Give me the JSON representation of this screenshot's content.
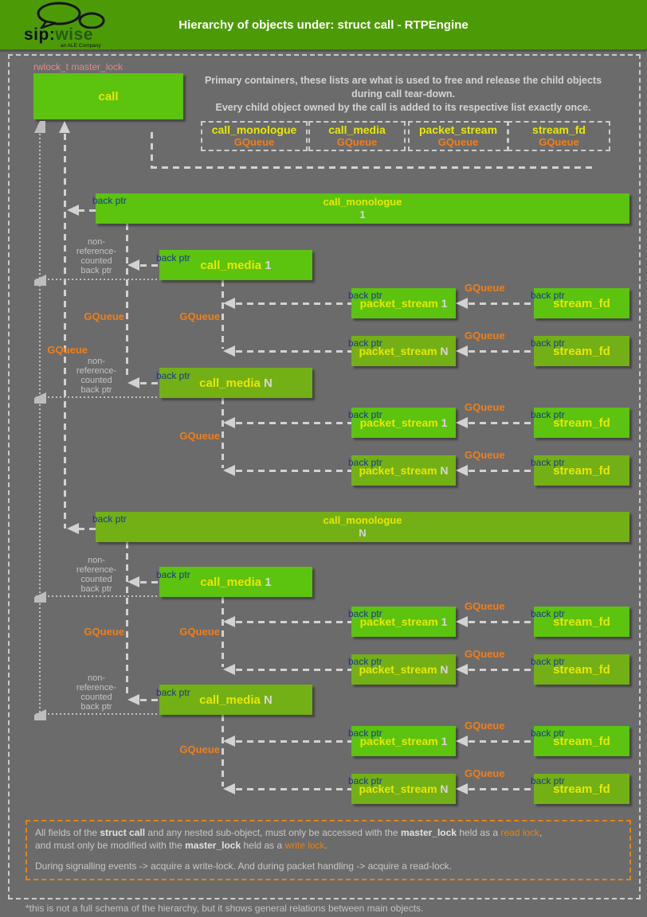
{
  "header": {
    "title": "Hierarchy of objects under: struct call - RTPEngine",
    "logo": {
      "sip": "sip:",
      "wise": "wise",
      "tagline": "an ALE Company"
    }
  },
  "diagram": {
    "lock_label": "rwlock_t master_lock",
    "call_label": "call",
    "description": "Primary containers, these lists are what is used to free and release the child objects\nduring call tear-down.\nEvery child object owned by the call is added to its respective list exactly once.",
    "legend": [
      {
        "name": "call_monologue",
        "container": "GQueue"
      },
      {
        "name": "call_media",
        "container": "GQueue"
      },
      {
        "name": "packet_stream",
        "container": "GQueue"
      },
      {
        "name": "stream_fd",
        "container": "GQueue"
      }
    ],
    "labels": {
      "back_ptr": "back ptr",
      "gqueue": "GQueue",
      "non_ref": "non-\nreference-\ncounted\nback ptr"
    },
    "monologues": [
      {
        "name": "call_monologue",
        "index": "1"
      },
      {
        "name": "call_monologue",
        "index": "N"
      }
    ],
    "medias": [
      {
        "name": "call_media",
        "index": "1"
      },
      {
        "name": "call_media",
        "index": "N"
      },
      {
        "name": "call_media",
        "index": "1"
      },
      {
        "name": "call_media",
        "index": "N"
      }
    ],
    "streams": [
      {
        "name": "packet_stream",
        "index": "1",
        "fd": "stream_fd"
      },
      {
        "name": "packet_stream",
        "index": "N",
        "fd": "stream_fd"
      },
      {
        "name": "packet_stream",
        "index": "1",
        "fd": "stream_fd"
      },
      {
        "name": "packet_stream",
        "index": "N",
        "fd": "stream_fd"
      },
      {
        "name": "packet_stream",
        "index": "1",
        "fd": "stream_fd"
      },
      {
        "name": "packet_stream",
        "index": "N",
        "fd": "stream_fd"
      },
      {
        "name": "packet_stream",
        "index": "1",
        "fd": "stream_fd"
      },
      {
        "name": "packet_stream",
        "index": "N",
        "fd": "stream_fd"
      }
    ]
  },
  "note": {
    "lines": [
      [
        {
          "t": "All fields of the "
        },
        {
          "t": "struct call",
          "b": true
        },
        {
          "t": " and any nested sub-object, must only be accessed with the "
        },
        {
          "t": "master_lock",
          "b": true
        },
        {
          "t": " held as a "
        },
        {
          "t": "read lock",
          "c": "orange"
        },
        {
          "t": ","
        }
      ],
      [
        {
          "t": "and must only be modified with the "
        },
        {
          "t": "master_lock",
          "b": true
        },
        {
          "t": " held as a "
        },
        {
          "t": "write lock",
          "c": "orange"
        },
        {
          "t": "."
        }
      ],
      [],
      [
        {
          "t": "During signalling events -> acquire a write-lock. And during packet handling -> acquire a read-lock."
        }
      ]
    ]
  },
  "footer": {
    "note": "*this is not a full schema of the hierarchy, but it shows general relations between main objects."
  },
  "colors": {
    "background": "#6b6b6b",
    "header_green": "#4c9b06",
    "box_green": "#5cc30f",
    "box_olive": "#73b016",
    "label_yellow": "#e8e800",
    "accent_orange": "#ef7f1a",
    "back_ptr_blue": "#16388f",
    "lock_salmon": "#dd8a8a",
    "line_gray": "#d2d2d2"
  }
}
